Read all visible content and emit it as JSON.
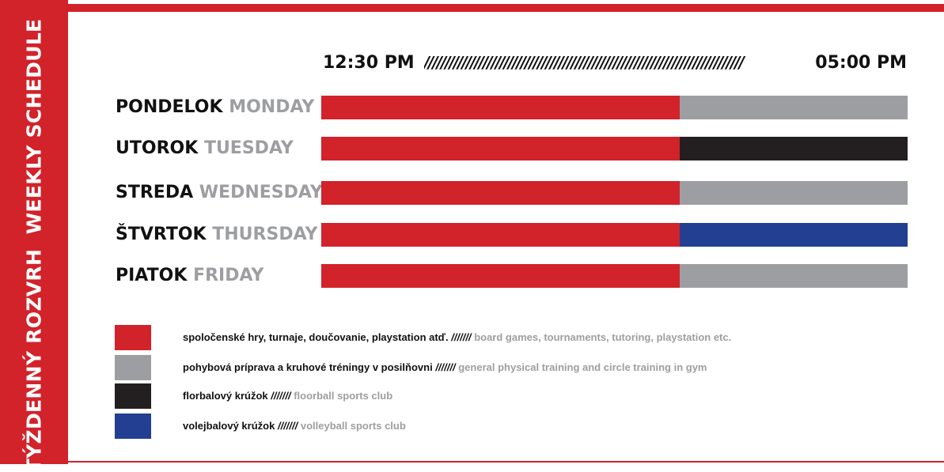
{
  "sidebar": {
    "title_en": "WEEKLY SCHEDULE",
    "title_sk": "TÝŽDENNÝ ROZVRH"
  },
  "timeline": {
    "start": "12:30 PM",
    "slashes": "////////////////////////////////////////////////////////////////////////////",
    "end": "05:00 PM"
  },
  "days": [
    {
      "sk": "PONDELOK",
      "en": "MONDAY",
      "second_color": "#9d9ea1"
    },
    {
      "sk": "UTOROK",
      "en": "TUESDAY",
      "second_color": "#231f20"
    },
    {
      "sk": "STREDA",
      "en": "WEDNESDAY",
      "second_color": "#9d9ea1"
    },
    {
      "sk": "ŠTVRTOK",
      "en": "THURSDAY",
      "second_color": "#233f92"
    },
    {
      "sk": "PIATOK",
      "en": "FRIDAY",
      "second_color": "#9d9ea1"
    }
  ],
  "legend": [
    {
      "color": "#d2222a",
      "sk": "spoločenské hry, turnaje, doučovanie, playstation atď.",
      "sep": "///////",
      "en": "board games, tournaments, tutoring, playstation etc."
    },
    {
      "color": "#9d9ea1",
      "sk": "pohybová príprava a kruhové tréningy v posilňovni",
      "sep": "///////",
      "en": "general physical training and circle training in gym"
    },
    {
      "color": "#231f20",
      "sk": "florbalový krúžok",
      "sep": "///////",
      "en": "floorball sports club"
    },
    {
      "color": "#233f92",
      "sk": "volejbalový krúžok",
      "sep": "///////",
      "en": "volleyball sports club"
    }
  ],
  "colors": {
    "accent_red": "#d2222a",
    "gray": "#9d9ea1",
    "black": "#231f20",
    "blue": "#233f92"
  }
}
